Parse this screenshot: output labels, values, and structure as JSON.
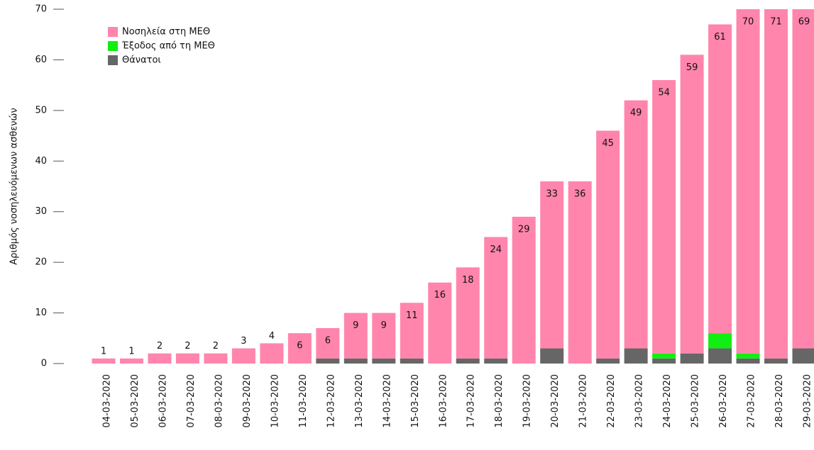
{
  "chart_data": {
    "type": "stacked_bar",
    "y_label": "Αριθμός νοσηλευόμενων ασθενών",
    "categories": [
      "04-03-2020",
      "05-03-2020",
      "06-03-2020",
      "07-03-2020",
      "08-03-2020",
      "09-03-2020",
      "10-03-2020",
      "11-03-2020",
      "12-03-2020",
      "13-03-2020",
      "14-03-2020",
      "15-03-2020",
      "16-03-2020",
      "17-03-2020",
      "18-03-2020",
      "19-03-2020",
      "20-03-2020",
      "21-03-2020",
      "22-03-2020",
      "23-03-2020",
      "24-03-2020",
      "25-03-2020",
      "26-03-2020",
      "27-03-2020",
      "28-03-2020",
      "29-03-2020"
    ],
    "series": [
      {
        "name": "Νοσηλεία στη ΜΕΘ",
        "color": "#ff85ad",
        "values": [
          1,
          1,
          2,
          2,
          2,
          3,
          4,
          6,
          6,
          9,
          9,
          11,
          16,
          18,
          24,
          29,
          33,
          36,
          45,
          49,
          54,
          59,
          61,
          70,
          71,
          69
        ]
      },
      {
        "name": "Έξοδος από τη ΜΕΘ",
        "color": "#11ee11",
        "values": [
          0,
          0,
          0,
          0,
          0,
          0,
          0,
          0,
          0,
          0,
          0,
          0,
          0,
          0,
          0,
          0,
          0,
          0,
          0,
          0,
          1,
          0,
          3,
          1,
          0,
          0
        ]
      },
      {
        "name": "Θάνατοι",
        "color": "#666666",
        "values": [
          0,
          0,
          0,
          0,
          0,
          0,
          0,
          0,
          1,
          1,
          1,
          1,
          0,
          1,
          1,
          0,
          3,
          0,
          1,
          3,
          1,
          2,
          3,
          1,
          1,
          3
        ]
      }
    ],
    "ylim": [
      0,
      70
    ],
    "yticks": [
      0,
      10,
      20,
      30,
      40,
      50,
      60,
      70
    ],
    "legend": "upper-left"
  }
}
